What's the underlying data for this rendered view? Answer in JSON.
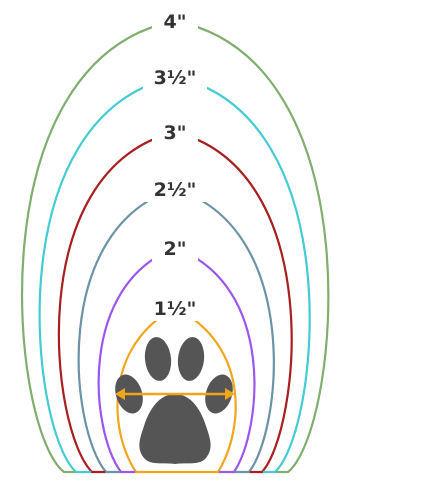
{
  "diagram": {
    "arches": [
      {
        "label": "4\"",
        "color": "#7fae6e"
      },
      {
        "label": "3½\"",
        "color": "#44cbd3"
      },
      {
        "label": "3\"",
        "color": "#a91e1e"
      },
      {
        "label": "2½\"",
        "color": "#6b93a3"
      },
      {
        "label": "2\"",
        "color": "#9a56ee"
      },
      {
        "label": "1½\"",
        "color": "#f0a61a"
      }
    ],
    "paw": {
      "icon": "paw-print-icon",
      "color": "#555555"
    },
    "measure_arrow": {
      "icon": "double-arrow-icon",
      "color": "#f0a61a"
    }
  }
}
